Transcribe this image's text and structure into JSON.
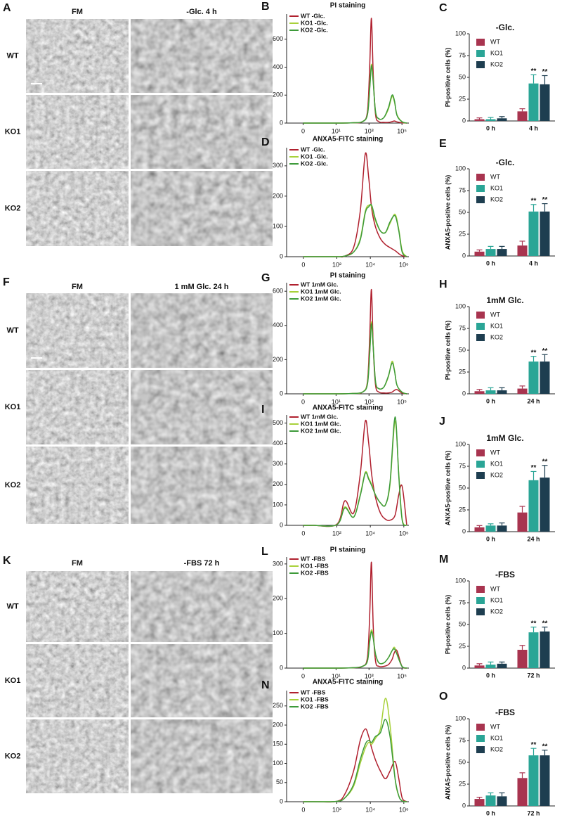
{
  "micrographs": [
    {
      "label": "A",
      "columns": [
        "FM",
        "-Glc.  4 h"
      ],
      "rows": [
        "WT",
        "KO1",
        "KO2"
      ]
    },
    {
      "label": "F",
      "columns": [
        "FM",
        "1 mM Glc.  24 h"
      ],
      "rows": [
        "WT",
        "KO1",
        "KO2"
      ]
    },
    {
      "label": "K",
      "columns": [
        "FM",
        "-FBS  72 h"
      ],
      "rows": [
        "WT",
        "KO1",
        "KO2"
      ]
    }
  ],
  "chart_data": [
    {
      "panel": "B",
      "type": "line",
      "title": "PI staining",
      "x": [
        0,
        10,
        100,
        400,
        800,
        1100,
        1400,
        1800,
        2500,
        4000,
        8000,
        15000,
        25000,
        35000,
        50000,
        100000,
        200000
      ],
      "xlim": [
        -5,
        262144
      ],
      "xticks": [
        0,
        {
          "value": 10,
          "label": "10¹"
        },
        {
          "value": 1000,
          "label": "10³"
        },
        {
          "value": 100000,
          "label": "10⁵"
        }
      ],
      "ylim": [
        0,
        780
      ],
      "yticks": [
        0,
        200,
        400,
        600
      ],
      "series": [
        {
          "name": "WT -Glc.",
          "color": "#b0202e",
          "values": [
            0,
            0,
            2,
            10,
            80,
            400,
            750,
            350,
            60,
            10,
            5,
            5,
            10,
            15,
            8,
            2,
            0
          ]
        },
        {
          "name": "KO1 -Glc.",
          "color": "#a8d13a",
          "values": [
            0,
            0,
            2,
            10,
            60,
            250,
            420,
            300,
            80,
            30,
            40,
            100,
            190,
            150,
            60,
            10,
            0
          ]
        },
        {
          "name": "KO2 -Glc.",
          "color": "#3d9a3a",
          "values": [
            0,
            0,
            2,
            10,
            60,
            240,
            410,
            290,
            80,
            30,
            40,
            110,
            200,
            160,
            55,
            10,
            0
          ]
        }
      ]
    },
    {
      "panel": "C",
      "type": "bar",
      "title": "-Glc.",
      "y_label": "PI-positive cells (%)",
      "categories": [
        "0 h",
        "4 h"
      ],
      "ylim": [
        0,
        100
      ],
      "yticks": [
        0,
        25,
        50,
        75,
        100
      ],
      "series": [
        {
          "name": "WT",
          "color": "#a8344f",
          "values": [
            2,
            11
          ],
          "errors": [
            1.5,
            3
          ]
        },
        {
          "name": "KO1",
          "color": "#2aa596",
          "values": [
            2,
            43
          ],
          "errors": [
            2,
            10
          ],
          "significance": [
            null,
            "**"
          ]
        },
        {
          "name": "KO2",
          "color": "#1e3e50",
          "values": [
            3,
            42
          ],
          "errors": [
            2,
            10
          ],
          "significance": [
            null,
            "**"
          ]
        }
      ]
    },
    {
      "panel": "D",
      "type": "line",
      "title": "ANXA5-FITC staining",
      "x": [
        0,
        30,
        100,
        300,
        1000,
        2500,
        5000,
        8000,
        12000,
        20000,
        40000,
        80000,
        150000,
        300000,
        500000,
        800000,
        1500000
      ],
      "xlim": [
        -50,
        2000000
      ],
      "xticks": [
        0,
        {
          "value": 100,
          "label": "10²"
        },
        {
          "value": 10000,
          "label": "10⁴"
        },
        {
          "value": 1000000,
          "label": "10⁶"
        }
      ],
      "ylim": [
        0,
        360
      ],
      "yticks": [
        0,
        100,
        200,
        300
      ],
      "series": [
        {
          "name": "WT -Glc.",
          "color": "#b0202e",
          "values": [
            0,
            0,
            0,
            2,
            30,
            150,
            340,
            260,
            160,
            100,
            60,
            40,
            30,
            20,
            10,
            3,
            0
          ]
        },
        {
          "name": "KO1 -Glc.",
          "color": "#a8d13a",
          "values": [
            0,
            0,
            0,
            2,
            15,
            60,
            150,
            170,
            165,
            120,
            85,
            80,
            110,
            140,
            90,
            20,
            0
          ]
        },
        {
          "name": "KO2 -Glc.",
          "color": "#3d9a3a",
          "values": [
            0,
            0,
            0,
            2,
            15,
            55,
            145,
            165,
            170,
            125,
            85,
            80,
            115,
            135,
            85,
            15,
            0
          ]
        }
      ]
    },
    {
      "panel": "E",
      "type": "bar",
      "title": "-Glc.",
      "y_label": "ANXA5-positive cells (%)",
      "categories": [
        "0 h",
        "4 h"
      ],
      "ylim": [
        0,
        100
      ],
      "yticks": [
        0,
        25,
        50,
        75,
        100
      ],
      "series": [
        {
          "name": "WT",
          "color": "#a8344f",
          "values": [
            5,
            12
          ],
          "errors": [
            2,
            5
          ]
        },
        {
          "name": "KO1",
          "color": "#2aa596",
          "values": [
            8,
            51
          ],
          "errors": [
            3,
            8
          ],
          "significance": [
            null,
            "**"
          ]
        },
        {
          "name": "KO2",
          "color": "#1e3e50",
          "values": [
            8,
            51
          ],
          "errors": [
            3,
            9
          ],
          "significance": [
            null,
            "**"
          ]
        }
      ]
    },
    {
      "panel": "G",
      "type": "line",
      "title": "PI staining",
      "x": [
        0,
        10,
        100,
        400,
        800,
        1100,
        1400,
        1800,
        2500,
        4000,
        8000,
        15000,
        25000,
        35000,
        50000,
        100000,
        200000
      ],
      "xlim": [
        -5,
        262144
      ],
      "xticks": [
        0,
        {
          "value": 10,
          "label": "10¹"
        },
        {
          "value": 1000,
          "label": "10³"
        },
        {
          "value": 100000,
          "label": "10⁵"
        }
      ],
      "ylim": [
        0,
        650
      ],
      "yticks": [
        0,
        200,
        400,
        600
      ],
      "series": [
        {
          "name": "WT 1mM Glc.",
          "color": "#b0202e",
          "values": [
            0,
            0,
            2,
            10,
            70,
            330,
            610,
            280,
            50,
            10,
            5,
            5,
            10,
            20,
            25,
            5,
            0
          ]
        },
        {
          "name": "KO1 1mM Glc.",
          "color": "#a8d13a",
          "values": [
            0,
            0,
            2,
            10,
            60,
            240,
            420,
            280,
            70,
            30,
            40,
            100,
            190,
            140,
            50,
            10,
            0
          ]
        },
        {
          "name": "KO2 1mM Glc.",
          "color": "#3d9a3a",
          "values": [
            0,
            0,
            2,
            10,
            55,
            230,
            410,
            270,
            70,
            30,
            40,
            105,
            180,
            135,
            50,
            10,
            0
          ]
        }
      ]
    },
    {
      "panel": "H",
      "type": "bar",
      "title": "1mM Glc.",
      "y_label": "PI-positive cells (%)",
      "categories": [
        "0 h",
        "24 h"
      ],
      "ylim": [
        0,
        100
      ],
      "yticks": [
        0,
        25,
        50,
        75,
        100
      ],
      "series": [
        {
          "name": "WT",
          "color": "#a8344f",
          "values": [
            3,
            6
          ],
          "errors": [
            2,
            3
          ]
        },
        {
          "name": "KO1",
          "color": "#2aa596",
          "values": [
            4,
            37
          ],
          "errors": [
            3,
            6
          ],
          "significance": [
            null,
            "**"
          ]
        },
        {
          "name": "KO2",
          "color": "#1e3e50",
          "values": [
            4,
            37
          ],
          "errors": [
            3,
            8
          ],
          "significance": [
            null,
            "**"
          ]
        }
      ]
    },
    {
      "panel": "I",
      "type": "line",
      "title": "ANXA5-FITC staining",
      "x": [
        0,
        30,
        100,
        300,
        1000,
        2500,
        5000,
        8000,
        12000,
        20000,
        40000,
        80000,
        150000,
        300000,
        500000,
        800000,
        1500000
      ],
      "xlim": [
        -50,
        2000000
      ],
      "xticks": [
        0,
        {
          "value": 100,
          "label": "10²"
        },
        {
          "value": 10000,
          "label": "10⁴"
        },
        {
          "value": 1000000,
          "label": "10⁶"
        }
      ],
      "ylim": [
        0,
        540
      ],
      "yticks": [
        0,
        100,
        200,
        300,
        400,
        500
      ],
      "series": [
        {
          "name": "WT 1mM Glc.",
          "color": "#b0202e",
          "values": [
            0,
            0,
            5,
            120,
            60,
            250,
            510,
            400,
            250,
            140,
            60,
            30,
            25,
            50,
            150,
            190,
            0
          ]
        },
        {
          "name": "KO1 1mM Glc.",
          "color": "#a8d13a",
          "values": [
            0,
            0,
            3,
            90,
            40,
            150,
            260,
            230,
            200,
            150,
            110,
            100,
            200,
            510,
            250,
            30,
            0
          ]
        },
        {
          "name": "KO2 1mM Glc.",
          "color": "#3d9a3a",
          "values": [
            0,
            0,
            3,
            85,
            40,
            145,
            255,
            225,
            195,
            150,
            110,
            100,
            210,
            530,
            240,
            25,
            0
          ]
        }
      ]
    },
    {
      "panel": "J",
      "type": "bar",
      "title": "1mM Glc.",
      "y_label": "ANXA5-positive cells (%)",
      "categories": [
        "0 h",
        "24 h"
      ],
      "ylim": [
        0,
        100
      ],
      "yticks": [
        0,
        25,
        50,
        75,
        100
      ],
      "series": [
        {
          "name": "WT",
          "color": "#a8344f",
          "values": [
            5,
            22
          ],
          "errors": [
            2,
            7
          ]
        },
        {
          "name": "KO1",
          "color": "#2aa596",
          "values": [
            7,
            59
          ],
          "errors": [
            2,
            10
          ],
          "significance": [
            null,
            "**"
          ]
        },
        {
          "name": "KO2",
          "color": "#1e3e50",
          "values": [
            7,
            62
          ],
          "errors": [
            3,
            14
          ],
          "significance": [
            null,
            "**"
          ]
        }
      ]
    },
    {
      "panel": "L",
      "type": "line",
      "title": "PI staining",
      "x": [
        0,
        10,
        100,
        400,
        800,
        1100,
        1400,
        1800,
        2500,
        4000,
        8000,
        15000,
        25000,
        35000,
        50000,
        100000,
        200000
      ],
      "xlim": [
        -5,
        262144
      ],
      "xticks": [
        0,
        {
          "value": 10,
          "label": "10¹"
        },
        {
          "value": 1000,
          "label": "10³"
        },
        {
          "value": 100000,
          "label": "10⁵"
        }
      ],
      "ylim": [
        0,
        320
      ],
      "yticks": [
        0,
        100,
        200,
        300
      ],
      "series": [
        {
          "name": "WT -FBS",
          "color": "#b0202e",
          "values": [
            0,
            0,
            1,
            5,
            30,
            150,
            305,
            120,
            20,
            5,
            5,
            10,
            25,
            45,
            50,
            5,
            0
          ]
        },
        {
          "name": "KO1 -FBS",
          "color": "#a8d13a",
          "values": [
            0,
            0,
            1,
            5,
            20,
            80,
            110,
            90,
            40,
            15,
            15,
            30,
            50,
            60,
            40,
            5,
            0
          ]
        },
        {
          "name": "KO2 -FBS",
          "color": "#3d9a3a",
          "values": [
            0,
            0,
            1,
            5,
            20,
            75,
            105,
            85,
            40,
            15,
            15,
            30,
            50,
            55,
            40,
            5,
            0
          ]
        }
      ]
    },
    {
      "panel": "M",
      "type": "bar",
      "title": "-FBS",
      "y_label": "PI-positive cells (%)",
      "categories": [
        "0 h",
        "72 h"
      ],
      "ylim": [
        0,
        100
      ],
      "yticks": [
        0,
        25,
        50,
        75,
        100
      ],
      "series": [
        {
          "name": "WT",
          "color": "#a8344f",
          "values": [
            3,
            21
          ],
          "errors": [
            2,
            5
          ]
        },
        {
          "name": "KO1",
          "color": "#2aa596",
          "values": [
            4,
            41
          ],
          "errors": [
            3,
            6
          ],
          "significance": [
            null,
            "**"
          ]
        },
        {
          "name": "KO2",
          "color": "#1e3e50",
          "values": [
            5,
            42
          ],
          "errors": [
            2,
            5
          ],
          "significance": [
            null,
            "**"
          ]
        }
      ]
    },
    {
      "panel": "N",
      "type": "line",
      "title": "ANXA5-FITC staining",
      "x": [
        0,
        30,
        100,
        300,
        1000,
        2500,
        5000,
        8000,
        12000,
        20000,
        40000,
        80000,
        150000,
        300000,
        500000,
        800000,
        1500000
      ],
      "xlim": [
        -50,
        2000000
      ],
      "xticks": [
        0,
        {
          "value": 100,
          "label": "10²"
        },
        {
          "value": 10000,
          "label": "10⁴"
        },
        {
          "value": 1000000,
          "label": "10⁶"
        }
      ],
      "ylim": [
        0,
        290
      ],
      "yticks": [
        0,
        50,
        100,
        150,
        200,
        250
      ],
      "series": [
        {
          "name": "WT -FBS",
          "color": "#b0202e",
          "values": [
            0,
            0,
            1,
            20,
            80,
            160,
            190,
            170,
            140,
            110,
            80,
            60,
            80,
            105,
            60,
            10,
            0
          ]
        },
        {
          "name": "KO1 -FBS",
          "color": "#a8d13a",
          "values": [
            0,
            0,
            1,
            10,
            40,
            100,
            140,
            155,
            150,
            165,
            190,
            270,
            200,
            60,
            15,
            2,
            0
          ]
        },
        {
          "name": "KO2 -FBS",
          "color": "#3d9a3a",
          "values": [
            0,
            0,
            1,
            10,
            45,
            110,
            150,
            160,
            155,
            170,
            180,
            215,
            170,
            60,
            15,
            2,
            0
          ]
        }
      ]
    },
    {
      "panel": "O",
      "type": "bar",
      "title": "-FBS",
      "y_label": "ANXA5-positive cells (%)",
      "categories": [
        "0 h",
        "72 h"
      ],
      "ylim": [
        0,
        100
      ],
      "yticks": [
        0,
        25,
        50,
        75,
        100
      ],
      "series": [
        {
          "name": "WT",
          "color": "#a8344f",
          "values": [
            8,
            32
          ],
          "errors": [
            2,
            6
          ]
        },
        {
          "name": "KO1",
          "color": "#2aa596",
          "values": [
            12,
            58
          ],
          "errors": [
            3,
            8
          ],
          "significance": [
            null,
            "**"
          ]
        },
        {
          "name": "KO2",
          "color": "#1e3e50",
          "values": [
            11,
            58
          ],
          "errors": [
            4,
            6
          ],
          "significance": [
            null,
            "**"
          ]
        }
      ]
    }
  ]
}
